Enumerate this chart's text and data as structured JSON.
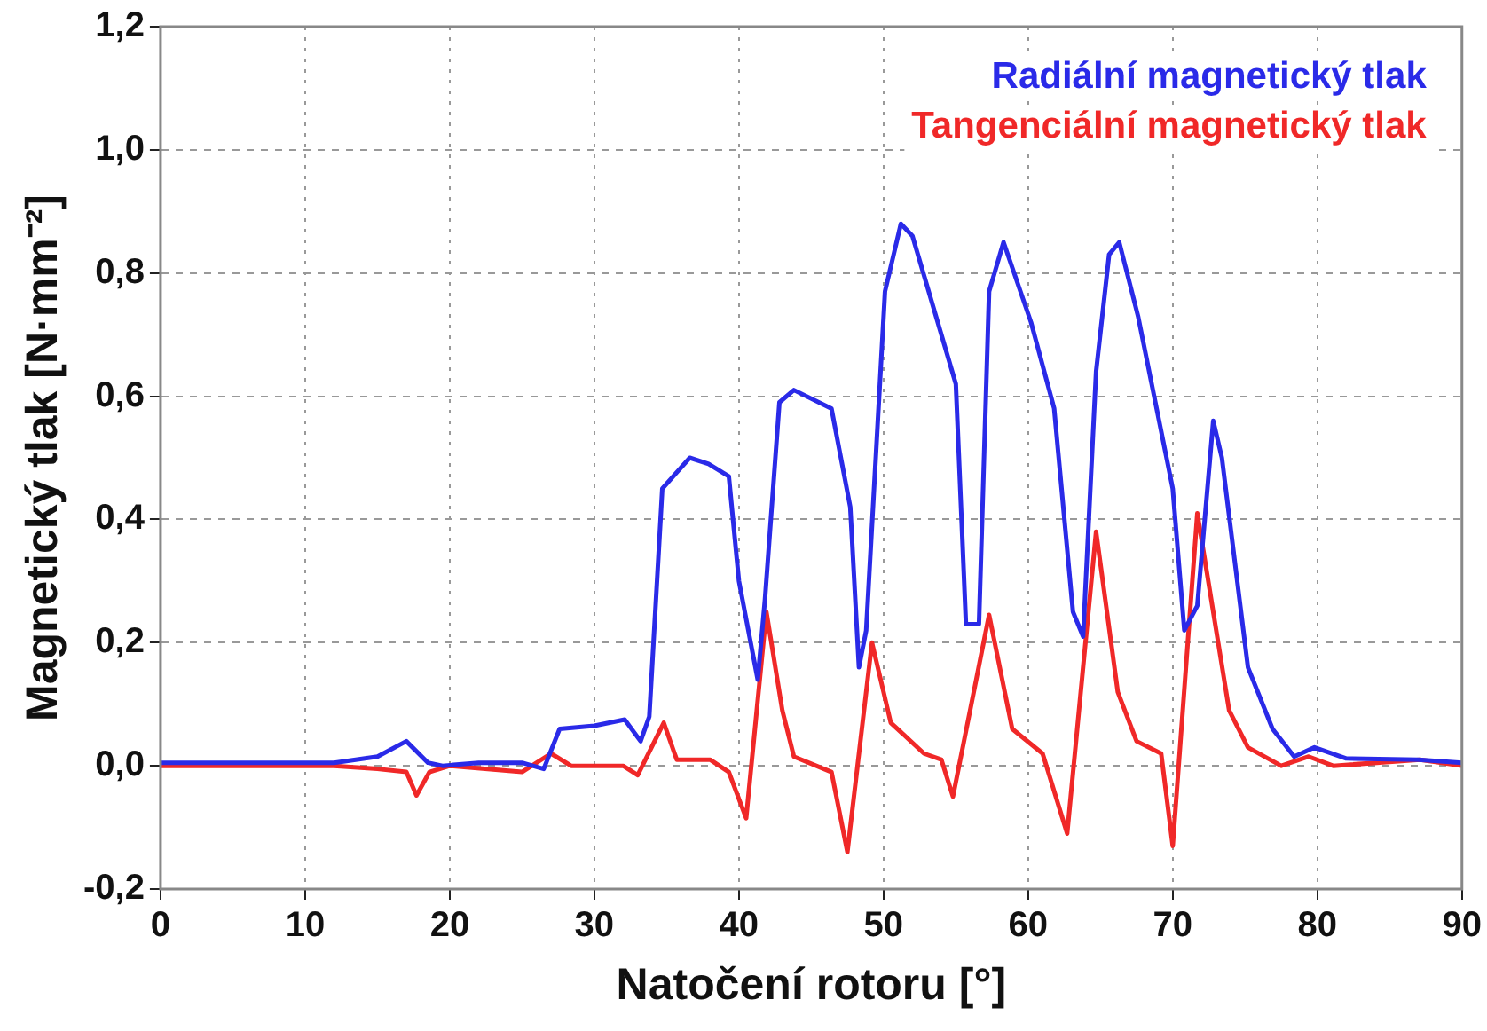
{
  "chart_data": {
    "type": "line",
    "xlabel": "Natočení rotoru [°]",
    "ylabel": "Magnetický tlak [N·mm⁻²]",
    "xlim": [
      0,
      90
    ],
    "xticks": [
      0,
      10,
      20,
      30,
      40,
      50,
      60,
      70,
      80,
      90
    ],
    "ylim": [
      -0.2,
      1.2
    ],
    "yticks": [
      {
        "value": -0.2,
        "label": "-0,2"
      },
      {
        "value": 0,
        "label": "0,0"
      },
      {
        "value": 0.2,
        "label": "0,2"
      },
      {
        "value": 0.4,
        "label": "0,4"
      },
      {
        "value": 0.6,
        "label": "0,6"
      },
      {
        "value": 0.8,
        "label": "0,8"
      },
      {
        "value": 1.0,
        "label": "1,0"
      },
      {
        "value": 1.2,
        "label": "1,2"
      }
    ],
    "grid": true,
    "legend": "top right",
    "marker": "none",
    "line_style": "solid",
    "series": [
      {
        "name": "Radiální magnetický tlak",
        "color": "#2a2ae8",
        "x": [
          0,
          12,
          15,
          17,
          18.5,
          19.5,
          22,
          25,
          26.5,
          27.6,
          30,
          32.1,
          33.2,
          33.8,
          34.7,
          36.6,
          37.9,
          39.3,
          40,
          41.3,
          41.8,
          42.8,
          43.8,
          46.4,
          47.7,
          48.3,
          48.8,
          50.1,
          51.2,
          52,
          55,
          55.7,
          56.6,
          57.3,
          58.3,
          60.2,
          61.8,
          63.1,
          63.8,
          64.7,
          65.6,
          66.3,
          67.6,
          70,
          70.8,
          71.7,
          72.8,
          73.4,
          75.2,
          76.9,
          78.4,
          79.8,
          82,
          87,
          90
        ],
        "values": [
          0.005,
          0.005,
          0.015,
          0.04,
          0.005,
          0,
          0.005,
          0.005,
          -0.005,
          0.06,
          0.065,
          0.075,
          0.04,
          0.08,
          0.45,
          0.5,
          0.49,
          0.47,
          0.3,
          0.14,
          0.27,
          0.59,
          0.61,
          0.58,
          0.42,
          0.16,
          0.22,
          0.77,
          0.88,
          0.86,
          0.62,
          0.23,
          0.23,
          0.77,
          0.85,
          0.72,
          0.58,
          0.25,
          0.21,
          0.64,
          0.83,
          0.85,
          0.73,
          0.45,
          0.22,
          0.26,
          0.56,
          0.5,
          0.16,
          0.06,
          0.015,
          0.03,
          0.012,
          0.01,
          0.005
        ]
      },
      {
        "name": "Tangenciální magnetický tlak",
        "color": "#f02828",
        "x": [
          0,
          12,
          15,
          17,
          17.7,
          18.6,
          20,
          25,
          27,
          28.4,
          32,
          33,
          34.8,
          35.7,
          38,
          39.3,
          40.5,
          41.9,
          43,
          43.8,
          46.4,
          47.5,
          49.2,
          50.5,
          52.8,
          54,
          54.8,
          57.3,
          58.9,
          61,
          62.7,
          64.7,
          66.2,
          67.5,
          69.2,
          70,
          71.7,
          73.9,
          75.2,
          77.5,
          79.4,
          81.1,
          87.1,
          90
        ],
        "values": [
          0,
          0,
          -0.005,
          -0.01,
          -0.048,
          -0.01,
          0,
          -0.01,
          0.02,
          0,
          0,
          -0.015,
          0.07,
          0.01,
          0.01,
          -0.01,
          -0.085,
          0.25,
          0.09,
          0.015,
          -0.01,
          -0.14,
          0.2,
          0.07,
          0.02,
          0.01,
          -0.05,
          0.245,
          0.06,
          0.02,
          -0.11,
          0.38,
          0.12,
          0.04,
          0.02,
          -0.13,
          0.41,
          0.09,
          0.03,
          0,
          0.015,
          0,
          0.01,
          0
        ]
      }
    ]
  }
}
